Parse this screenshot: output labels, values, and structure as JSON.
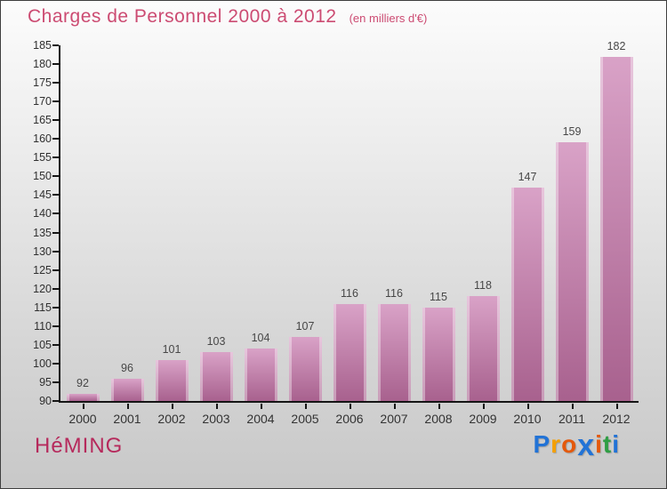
{
  "header": {
    "title": "Charges de Personnel 2000 à 2012",
    "subtitle": "(en milliers d'€)",
    "title_color": "#cc4b72"
  },
  "footer": {
    "brand": "HéMING",
    "brand_color": "#b62a5c",
    "logo_name": "Proxiti",
    "logo_letters": [
      {
        "ch": "P",
        "color": "#2273d6",
        "big": false
      },
      {
        "ch": "r",
        "color": "#f5a000",
        "big": false
      },
      {
        "ch": "o",
        "color": "#e4590c",
        "big": false
      },
      {
        "ch": "x",
        "color": "#2273d6",
        "big": true
      },
      {
        "ch": "i",
        "color": "#e4590c",
        "big": false
      },
      {
        "ch": "t",
        "color": "#2f9e44",
        "big": false
      },
      {
        "ch": "i",
        "color": "#2273d6",
        "big": false
      }
    ]
  },
  "chart_data": {
    "type": "bar",
    "title": "Charges de Personnel 2000 à 2012",
    "subtitle": "(en milliers d'€)",
    "categories": [
      "2000",
      "2001",
      "2002",
      "2003",
      "2004",
      "2005",
      "2006",
      "2007",
      "2008",
      "2009",
      "2010",
      "2011",
      "2012"
    ],
    "values": [
      92,
      96,
      101,
      103,
      104,
      107,
      116,
      116,
      115,
      118,
      147,
      159,
      182
    ],
    "ylim": [
      90,
      185
    ],
    "ytick_step": 5,
    "grid": false,
    "legend": false,
    "bar_color_top": "#d9a2c7",
    "bar_color_bottom": "#a8618e",
    "bar_edge_highlight": "#e6bad6",
    "axis_color": "#151515",
    "label_color": "#474747"
  }
}
